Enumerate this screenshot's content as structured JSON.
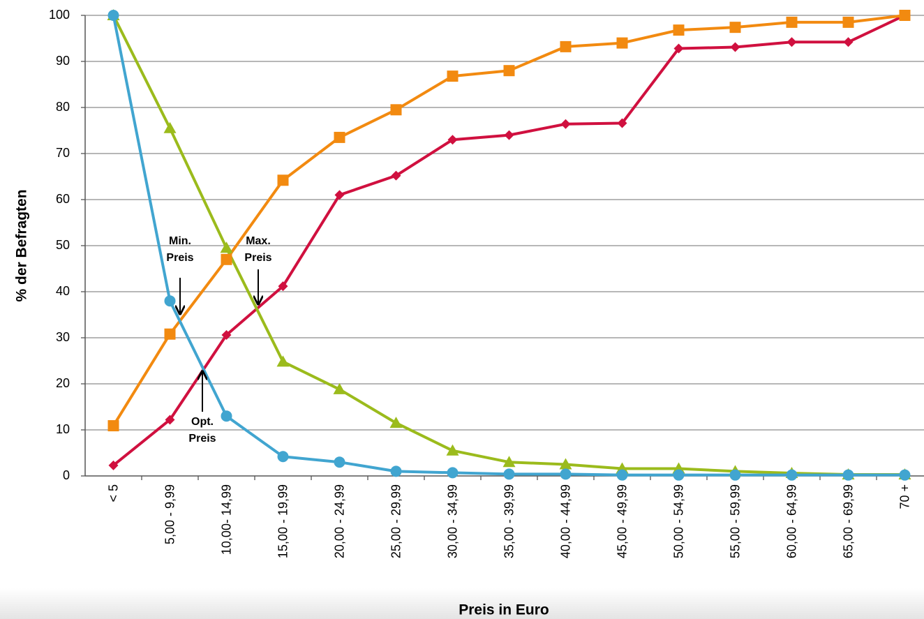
{
  "chart_data": {
    "type": "line",
    "x_label": "Preis in Euro",
    "y_label": "% der Befragten",
    "categories": [
      "< 5",
      "5,00 - 9,99",
      "10,00- 14,99",
      "15,00 - 19,99",
      "20,00 - 24,99",
      "25,00 - 29,99",
      "30,00 - 34,99",
      "35,00 - 39,99",
      "40,00 - 44,99",
      "45,00 - 49,99",
      "50,00 - 54,99",
      "55,00 - 59,99",
      "60,00 - 64,99",
      "65,00 - 69,99",
      "70 +"
    ],
    "series": [
      {
        "color": "#d0103f",
        "marker": "diamond",
        "values": [
          2.3,
          12.2,
          30.6,
          41.2,
          61,
          65.2,
          73,
          74,
          76.4,
          76.6,
          92.8,
          93.1,
          94.2,
          94.2,
          100
        ]
      },
      {
        "color": "#f28a10",
        "marker": "square",
        "values": [
          10.9,
          30.8,
          47,
          64.2,
          73.5,
          79.5,
          86.8,
          88,
          93.2,
          94,
          96.8,
          97.4,
          98.5,
          98.5,
          100
        ]
      },
      {
        "color": "#9bbb1c",
        "marker": "triangle",
        "values": [
          100,
          75.5,
          49.5,
          24.8,
          18.8,
          11.5,
          5.5,
          3,
          2.5,
          1.6,
          1.6,
          1,
          0.6,
          0.3,
          0.3
        ]
      },
      {
        "color": "#41a5d0",
        "marker": "circle",
        "values": [
          100,
          38,
          13,
          4.2,
          3,
          1,
          0.7,
          0.4,
          0.4,
          0.2,
          0.2,
          0.2,
          0.2,
          0.2,
          0.2
        ]
      }
    ],
    "ylim": [
      0,
      100
    ],
    "yticks": [
      0,
      10,
      20,
      30,
      40,
      50,
      60,
      70,
      80,
      90,
      100
    ],
    "grid": true,
    "annotations": [
      {
        "lines": [
          "Min.",
          "Preis"
        ]
      },
      {
        "lines": [
          "Max.",
          "Preis"
        ]
      },
      {
        "lines": [
          "Opt.",
          "Preis"
        ]
      }
    ]
  }
}
